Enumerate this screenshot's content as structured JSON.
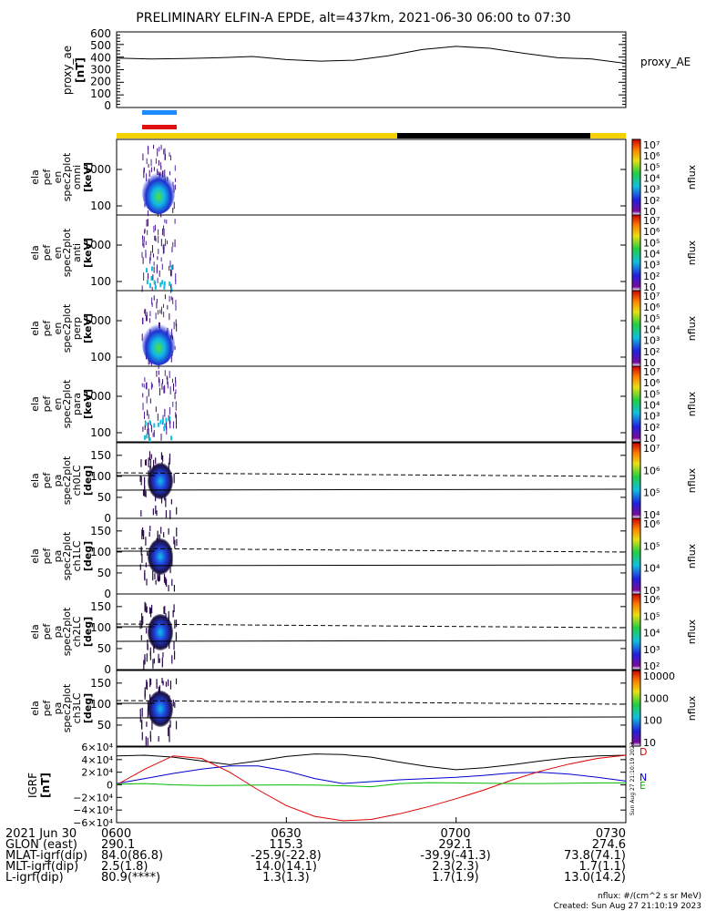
{
  "title": "PRELIMINARY ELFIN-A EPDE, alt=437km, 2021-06-30 06:00 to 07:30",
  "colors": {
    "sunlit_bar": "#f5d000",
    "eclipse_bar": "#000000",
    "blue_mark": "#1a8cff",
    "red_mark": "#e01010",
    "igrf_n": "#0000cc",
    "igrf_d": "#dd0000",
    "igrf_e": "#00bb00",
    "igrf_t": "#000000"
  },
  "chart_data": [
    {
      "type": "line",
      "name": "proxy_ae",
      "ylabel_lines": [
        "proxy_ae",
        "[nT]"
      ],
      "right_label": "proxy_AE",
      "yticks": [
        "600",
        "500",
        "400",
        "300",
        "200",
        "100",
        "0"
      ],
      "ylim": [
        0,
        600
      ],
      "x": [
        0,
        6,
        12,
        18,
        24,
        30,
        36,
        42,
        48,
        54,
        60,
        66,
        72,
        78,
        84,
        90
      ],
      "values": [
        392,
        385,
        388,
        395,
        405,
        380,
        368,
        375,
        410,
        460,
        485,
        470,
        430,
        395,
        385,
        350
      ]
    },
    {
      "type": "heatmap",
      "name": "ela pef en spec2plot omni",
      "ylabel_lines": [
        "ela",
        "pef",
        "en",
        "spec2plot",
        "omni",
        "[keV]"
      ],
      "yticks": [
        "1000",
        "100"
      ],
      "colorbar_ticks": [
        "10⁷",
        "10⁶",
        "10⁵",
        "10⁴",
        "10³",
        "10²",
        "10"
      ],
      "colorbar_label": "nflux"
    },
    {
      "type": "heatmap",
      "name": "ela pef en spec2plot anti",
      "ylabel_lines": [
        "ela",
        "pef",
        "en",
        "spec2plot",
        "anti",
        "[keV]"
      ],
      "yticks": [
        "1000",
        "100"
      ],
      "colorbar_ticks": [
        "10⁷",
        "10⁶",
        "10⁵",
        "10⁴",
        "10³",
        "10²",
        "10"
      ],
      "colorbar_label": "nflux"
    },
    {
      "type": "heatmap",
      "name": "ela pef en spec2plot perp",
      "ylabel_lines": [
        "ela",
        "pef",
        "en",
        "spec2plot",
        "perp",
        "[keV]"
      ],
      "yticks": [
        "1000",
        "100"
      ],
      "colorbar_ticks": [
        "10⁷",
        "10⁶",
        "10⁵",
        "10⁴",
        "10³",
        "10²",
        "10"
      ],
      "colorbar_label": "nflux"
    },
    {
      "type": "heatmap",
      "name": "ela pef en spec2plot para",
      "ylabel_lines": [
        "ela",
        "pef",
        "en",
        "spec2plot",
        "para",
        "[keV]"
      ],
      "yticks": [
        "1000",
        "100"
      ],
      "colorbar_ticks": [
        "10⁷",
        "10⁶",
        "10⁵",
        "10⁴",
        "10³",
        "10²",
        "10"
      ],
      "colorbar_label": "nflux"
    },
    {
      "type": "heatmap",
      "name": "ela pef pa spec2plot ch0LC",
      "ylabel_lines": [
        "ela",
        "pef",
        "pa",
        "spec2plot",
        "ch0LC",
        "[deg]"
      ],
      "yticks": [
        "150",
        "100",
        "50",
        "0"
      ],
      "ylim": [
        0,
        180
      ],
      "colorbar_ticks": [
        "10⁷",
        "10⁶",
        "10⁵",
        "10⁴"
      ],
      "colorbar_label": "nflux"
    },
    {
      "type": "heatmap",
      "name": "ela pef pa spec2plot ch1LC",
      "ylabel_lines": [
        "ela",
        "pef",
        "pa",
        "spec2plot",
        "ch1LC",
        "[deg]"
      ],
      "yticks": [
        "150",
        "100",
        "50",
        "0"
      ],
      "ylim": [
        0,
        180
      ],
      "colorbar_ticks": [
        "10⁶",
        "10⁵",
        "10⁴",
        "10³"
      ],
      "colorbar_label": "nflux"
    },
    {
      "type": "heatmap",
      "name": "ela pef pa spec2plot ch2LC",
      "ylabel_lines": [
        "ela",
        "pef",
        "pa",
        "spec2plot",
        "ch2LC",
        "[deg]"
      ],
      "yticks": [
        "150",
        "100",
        "50",
        "0"
      ],
      "ylim": [
        0,
        180
      ],
      "colorbar_ticks": [
        "10⁶",
        "10⁵",
        "10⁴",
        "10³",
        "10²"
      ],
      "colorbar_label": "nflux"
    },
    {
      "type": "heatmap",
      "name": "ela pef pa spec2plot ch3LC",
      "ylabel_lines": [
        "ela",
        "pef",
        "pa",
        "spec2plot",
        "ch3LC",
        "[deg]"
      ],
      "yticks": [
        "150",
        "100",
        "50"
      ],
      "ylim": [
        0,
        180
      ],
      "colorbar_ticks": [
        "10000",
        "1000",
        "100",
        "10"
      ],
      "colorbar_label": "nflux"
    },
    {
      "type": "line",
      "name": "IGRF",
      "ylabel_lines": [
        "IGRF",
        "[nT]"
      ],
      "yticks": [
        "6×10⁴",
        "4×10⁴",
        "2×10⁴",
        "0",
        "−2×10⁴",
        "−4×10⁴",
        "−6×10⁴"
      ],
      "ylim": [
        -60000,
        60000
      ],
      "legend": [
        "D",
        "N",
        "E"
      ],
      "x": [
        0,
        5,
        10,
        15,
        20,
        25,
        30,
        35,
        40,
        45,
        50,
        55,
        60,
        65,
        70,
        75,
        80,
        85,
        90
      ],
      "series": [
        {
          "name": "T",
          "values": [
            46000,
            47000,
            44000,
            38000,
            32000,
            38000,
            45000,
            49000,
            48000,
            44000,
            36000,
            29000,
            24000,
            27000,
            32000,
            38000,
            43000,
            46000,
            47000
          ]
        },
        {
          "name": "N",
          "values": [
            2000,
            10000,
            18000,
            25000,
            30000,
            30000,
            22000,
            10000,
            2000,
            5000,
            8000,
            10000,
            12000,
            15000,
            19000,
            20000,
            17000,
            12000,
            6000
          ]
        },
        {
          "name": "D",
          "values": [
            0,
            25000,
            46000,
            42000,
            20000,
            -8000,
            -33000,
            -50000,
            -57000,
            -55000,
            -46000,
            -35000,
            -22000,
            -8000,
            8000,
            22000,
            33000,
            42000,
            47000
          ]
        },
        {
          "name": "E",
          "values": [
            1000,
            2000,
            0,
            -1000,
            -800,
            -400,
            -200,
            -500,
            -1500,
            -3000,
            2000,
            3500,
            3000,
            2500,
            2000,
            2000,
            2500,
            3000,
            3000
          ]
        }
      ]
    }
  ],
  "ephemeris": {
    "rows": [
      {
        "label": "2021 Jun 30",
        "values": [
          "0600",
          "0630",
          "0700",
          "0730"
        ]
      },
      {
        "label": "GLON (east)",
        "values": [
          "290.1",
          "115.3",
          "292.1",
          "274.6"
        ]
      },
      {
        "label": "MLAT-igrf(dip)",
        "values": [
          "84.0(86.8)",
          "-25.9(-22.8)",
          "-39.9(-41.3)",
          "73.8(74.1)"
        ]
      },
      {
        "label": "MLT-igrf(dip)",
        "values": [
          "2.5(1.8)",
          "14.0(14.1)",
          "2.3(2.3)",
          "1.7(1.1)"
        ]
      },
      {
        "label": "L-igrf(dip)",
        "values": [
          "80.9(****)",
          "1.3(1.3)",
          "1.7(1.9)",
          "13.0(14.2)"
        ]
      }
    ]
  },
  "footer": {
    "units": "nflux: #/(cm^2 s sr MeV)",
    "created": "Created: Sun Aug 27 21:10:19 2023",
    "side_stamp": "Sun Aug 27 21:10:19 2023"
  }
}
